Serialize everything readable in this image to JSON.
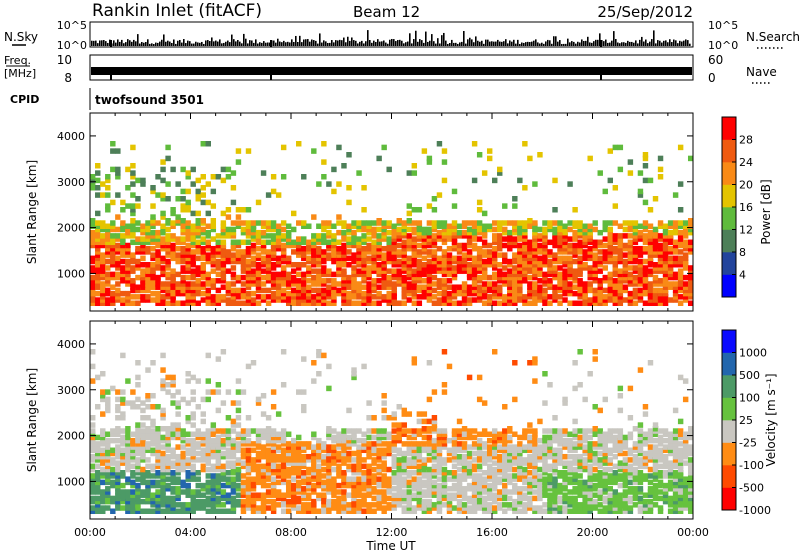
{
  "header": {
    "station": "Rankin Inlet (fitACF)",
    "beam": "Beam 12",
    "date": "25/Sep/2012"
  },
  "status_panels": {
    "nsky_label": "N.Sky",
    "nsky_ticks_left": [
      "10^5",
      "10^0"
    ],
    "nsky_ticks_right": [
      "10^5",
      "10^0"
    ],
    "nsearch_label": "N.Search",
    "freq_label_1": "Freq.",
    "freq_label_2": "[MHz]",
    "freq_ticks": [
      "10",
      "8"
    ],
    "nave_label": "Nave",
    "nave_ticks": [
      "60",
      "0"
    ],
    "cpid_label": "CPID",
    "cpid_value": "twofsound 3501"
  },
  "chart_data": [
    {
      "type": "heatmap",
      "name": "power",
      "ylabel": "Slant Range [km]",
      "yticks": [
        "4000",
        "3000",
        "2000",
        "1000"
      ],
      "ylim": [
        180,
        4500
      ],
      "xlim": [
        0,
        24
      ],
      "colorbar_label": "Power [dB]",
      "colorbar_ticks": [
        "28",
        "24",
        "20",
        "16",
        "12",
        "8",
        "4"
      ],
      "colors": [
        "#0000ff",
        "#22449c",
        "#4d7f58",
        "#5fbb3c",
        "#e4c400",
        "#f98a16",
        "#ef5a10",
        "#ff0000"
      ]
    },
    {
      "type": "heatmap",
      "name": "velocity",
      "ylabel": "Slant Range [km]",
      "yticks": [
        "4000",
        "3000",
        "2000",
        "1000"
      ],
      "ylim": [
        180,
        4500
      ],
      "xlim": [
        0,
        24
      ],
      "colorbar_label": "Velocity [m s⁻¹]",
      "colorbar_ticks": [
        "1000",
        "500",
        "100",
        "25",
        "-25",
        "-100",
        "-500",
        "-1000"
      ],
      "colors": [
        "#ff0000",
        "#ff4a00",
        "#ff8c14",
        "#c9c7c1",
        "#66c23e",
        "#4c9a66",
        "#2266ad",
        "#0a0aff"
      ]
    }
  ],
  "x_axis": {
    "ticks": [
      "00:00",
      "04:00",
      "08:00",
      "12:00",
      "16:00",
      "20:00",
      "00:00"
    ],
    "label": "Time UT"
  }
}
